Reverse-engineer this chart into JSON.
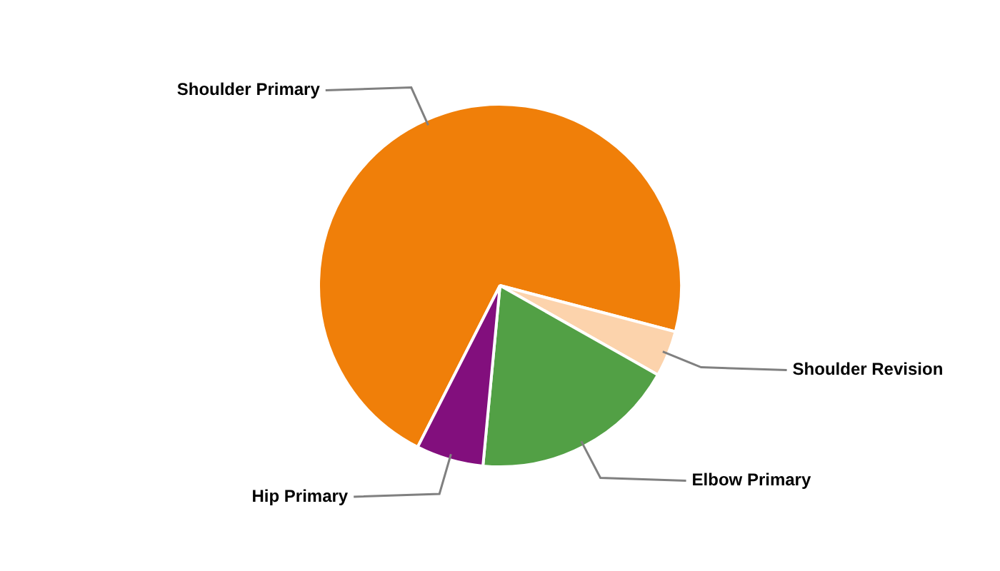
{
  "chart_data": {
    "type": "pie",
    "categories": [
      "Shoulder Primary",
      "Shoulder Revision",
      "Elbow Primary",
      "Hip Primary"
    ],
    "values": [
      71.6,
      4.1,
      18.3,
      6.0
    ],
    "colors": [
      "#f07f09",
      "#fcd3ac",
      "#52a045",
      "#820f7d"
    ],
    "legend": false
  }
}
